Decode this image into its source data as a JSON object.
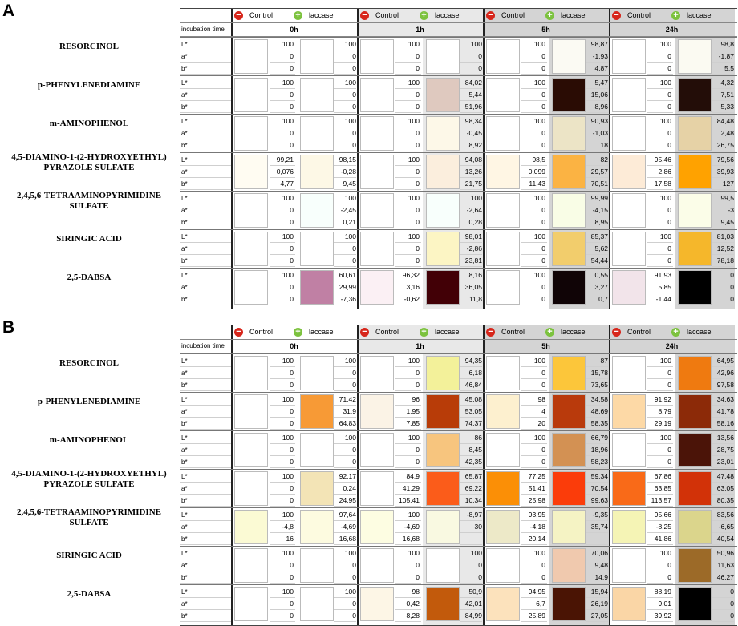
{
  "incubation_label": "incubation time",
  "control_label": "Control",
  "laccase_label": "laccase",
  "timepoints": [
    "0h",
    "1h",
    "5h",
    "24h"
  ],
  "param_labels": [
    "L*",
    "a*",
    "b*"
  ],
  "compounds": [
    "RESORCINOL",
    "p-PHENYLENEDIAMINE",
    "m-AMINOPHENOL",
    "4,5-DIAMINO-1-(2-HYDROXYETHYL)\nPYRAZOLE  SULFATE",
    "2,4,5,6-TETRAAMINOPYRIMIDINE\nSULFATE",
    "SIRINGIC ACID",
    "2,5-DABSA"
  ],
  "panels": [
    {
      "letter": "A",
      "rows": [
        {
          "control": [
            [
              "100",
              "0",
              "0"
            ],
            [
              "100",
              "0",
              "0"
            ],
            [
              "100",
              "0",
              "0"
            ],
            [
              "100",
              "0",
              "0"
            ]
          ],
          "laccase": [
            [
              "100",
              "0",
              "0"
            ],
            [
              "100",
              "0",
              "0"
            ],
            [
              "98,87",
              "-1,93",
              "4,87"
            ],
            [
              "98,8",
              "-1,87",
              "5,5"
            ]
          ],
          "ctrl_colors": [
            "#ffffff",
            "#ffffff",
            "#ffffff",
            "#ffffff"
          ],
          "lac_colors": [
            "#ffffff",
            "#ffffff",
            "#fbfaf3",
            "#fbfaf2"
          ]
        },
        {
          "control": [
            [
              "100",
              "0",
              "0"
            ],
            [
              "100",
              "0",
              "0"
            ],
            [
              "100",
              "0",
              "0"
            ],
            [
              "100",
              "0",
              "0"
            ]
          ],
          "laccase": [
            [
              "100",
              "0",
              "0"
            ],
            [
              "84,02",
              "5,44",
              "51,96"
            ],
            [
              "5,47",
              "15,06",
              "8,96"
            ],
            [
              "4,32",
              "7,51",
              "5,33"
            ]
          ],
          "ctrl_colors": [
            "#ffffff",
            "#ffffff",
            "#ffffff",
            "#ffffff"
          ],
          "lac_colors": [
            "#ffffff",
            "#dfc9bf",
            "#2a0c04",
            "#230d08"
          ]
        },
        {
          "control": [
            [
              "100",
              "0",
              "0"
            ],
            [
              "100",
              "0",
              "0"
            ],
            [
              "100",
              "0",
              "0"
            ],
            [
              "100",
              "0",
              "0"
            ]
          ],
          "laccase": [
            [
              "100",
              "0",
              "0"
            ],
            [
              "98,34",
              "-0,45",
              "8,92"
            ],
            [
              "90,93",
              "-1,03",
              "18"
            ],
            [
              "84,48",
              "2,48",
              "26,75"
            ]
          ],
          "ctrl_colors": [
            "#ffffff",
            "#ffffff",
            "#ffffff",
            "#ffffff"
          ],
          "lac_colors": [
            "#ffffff",
            "#fdf8e8",
            "#ece4c6",
            "#e6d2a6"
          ]
        },
        {
          "control": [
            [
              "99,21",
              "0,076",
              "4,77"
            ],
            [
              "100",
              "0",
              "0"
            ],
            [
              "98,5",
              "0,099",
              "11,43"
            ],
            [
              "95,46",
              "2,86",
              "17,58"
            ]
          ],
          "laccase": [
            [
              "98,15",
              "-0,28",
              "9,45"
            ],
            [
              "94,08",
              "13,26",
              "21,75"
            ],
            [
              "82",
              "29,57",
              "70,51"
            ],
            [
              "79,56",
              "39,93",
              "127"
            ]
          ],
          "ctrl_colors": [
            "#fffcf2",
            "#ffffff",
            "#fff6e4",
            "#fdebd7"
          ],
          "lac_colors": [
            "#fdf8e6",
            "#fbeedd",
            "#fbb343",
            "#ffa200"
          ]
        },
        {
          "control": [
            [
              "100",
              "0",
              "0"
            ],
            [
              "100",
              "0",
              "0"
            ],
            [
              "100",
              "0",
              "0"
            ],
            [
              "100",
              "0",
              "0"
            ]
          ],
          "laccase": [
            [
              "100",
              "-2,45",
              "0,21"
            ],
            [
              "100",
              "-2,64",
              "0,28"
            ],
            [
              "99,99",
              "-4,15",
              "8,95"
            ],
            [
              "99,5",
              "-3",
              "9,45"
            ]
          ],
          "ctrl_colors": [
            "#ffffff",
            "#ffffff",
            "#ffffff",
            "#ffffff"
          ],
          "lac_colors": [
            "#f8fffc",
            "#f8fffc",
            "#f9fde6",
            "#fbfde8"
          ]
        },
        {
          "control": [
            [
              "100",
              "0",
              "0"
            ],
            [
              "100",
              "0",
              "0"
            ],
            [
              "100",
              "0",
              "0"
            ],
            [
              "100",
              "0",
              "0"
            ]
          ],
          "laccase": [
            [
              "100",
              "0",
              "0"
            ],
            [
              "98,01",
              "-2,86",
              "23,81"
            ],
            [
              "85,37",
              "5,62",
              "54,44"
            ],
            [
              "81,03",
              "12,52",
              "78,18"
            ]
          ],
          "ctrl_colors": [
            "#ffffff",
            "#ffffff",
            "#ffffff",
            "#ffffff"
          ],
          "lac_colors": [
            "#ffffff",
            "#fcf5c4",
            "#f2cd6c",
            "#f5b72b"
          ]
        },
        {
          "control": [
            [
              "100",
              "0",
              "0"
            ],
            [
              "96,32",
              "3,16",
              "-0,62"
            ],
            [
              "100",
              "0",
              "0"
            ],
            [
              "91,93",
              "5,85",
              "-1,44"
            ]
          ],
          "laccase": [
            [
              "60,61",
              "29,99",
              "-7,36"
            ],
            [
              "8,16",
              "36,05",
              "11,8"
            ],
            [
              "0,55",
              "3,27",
              "0,7"
            ],
            [
              "0",
              "0",
              "0"
            ]
          ],
          "ctrl_colors": [
            "#ffffff",
            "#fbf0f4",
            "#ffffff",
            "#f2e4ea"
          ],
          "lac_colors": [
            "#c080a4",
            "#420006",
            "#100406",
            "#000000"
          ]
        }
      ]
    },
    {
      "letter": "B",
      "rows": [
        {
          "control": [
            [
              "100",
              "0",
              "0"
            ],
            [
              "100",
              "0",
              "0"
            ],
            [
              "100",
              "0",
              "0"
            ],
            [
              "100",
              "0",
              "0"
            ]
          ],
          "laccase": [
            [
              "100",
              "0",
              "0"
            ],
            [
              "94,35",
              "6,18",
              "46,84"
            ],
            [
              "87",
              "15,78",
              "73,65"
            ],
            [
              "64,95",
              "42,96",
              "97,58"
            ]
          ],
          "ctrl_colors": [
            "#ffffff",
            "#ffffff",
            "#ffffff",
            "#ffffff"
          ],
          "lac_colors": [
            "#ffffff",
            "#f3f19a",
            "#fcc63a",
            "#ef7a10"
          ]
        },
        {
          "control": [
            [
              "100",
              "0",
              "0"
            ],
            [
              "96",
              "1,95",
              "7,85"
            ],
            [
              "98",
              "4",
              "20"
            ],
            [
              "91,92",
              "8,79",
              "29,19"
            ]
          ],
          "laccase": [
            [
              "71,42",
              "31,9",
              "64,83"
            ],
            [
              "45,08",
              "53,05",
              "74,37"
            ],
            [
              "34,58",
              "48,69",
              "58,35"
            ],
            [
              "34,63",
              "41,78",
              "58,16"
            ]
          ],
          "ctrl_colors": [
            "#ffffff",
            "#fbf3e6",
            "#fdf0cf",
            "#fdd9a6"
          ],
          "lac_colors": [
            "#f79a36",
            "#b83c08",
            "#b93a0c",
            "#8c2a08"
          ]
        },
        {
          "control": [
            [
              "100",
              "0",
              "0"
            ],
            [
              "100",
              "0",
              "0"
            ],
            [
              "100",
              "0",
              "0"
            ],
            [
              "100",
              "0",
              "0"
            ]
          ],
          "laccase": [
            [
              "100",
              "0",
              "0"
            ],
            [
              "86",
              "8,45",
              "42,35"
            ],
            [
              "66,79",
              "18,96",
              "58,23"
            ],
            [
              "13,56",
              "28,75",
              "23,01"
            ]
          ],
          "ctrl_colors": [
            "#ffffff",
            "#ffffff",
            "#ffffff",
            "#ffffff"
          ],
          "lac_colors": [
            "#ffffff",
            "#f7c57e",
            "#d39153",
            "#4b1408"
          ]
        },
        {
          "control": [
            [
              "100",
              "0",
              "0"
            ],
            [
              "84,9",
              "41,29",
              "105,41"
            ],
            [
              "77,25",
              "51,41",
              "25,98"
            ],
            [
              "67,86",
              "63,85",
              "113,57"
            ]
          ],
          "laccase": [
            [
              "92,17",
              "0,24",
              "24,95"
            ],
            [
              "65,87",
              "69,22",
              "10,34"
            ],
            [
              "59,34",
              "70,54",
              "99,63"
            ],
            [
              "47,48",
              "63,05",
              "80,35"
            ]
          ],
          "ctrl_colors": [
            "#ffffff",
            "#ffffff",
            "#fb8f06",
            "#f96a18"
          ],
          "lac_colors": [
            "#f3e4b6",
            "#fb5c1a",
            "#fb3c0a",
            "#d23208"
          ]
        },
        {
          "control": [
            [
              "100",
              "-4,8",
              "16"
            ],
            [
              "100",
              "-4,69",
              "16,68"
            ],
            [
              "93,95",
              "-4,18",
              "20,14"
            ],
            [
              "95,66",
              "-8,25",
              "41,86"
            ]
          ],
          "laccase": [
            [
              "97,64",
              "-4,69",
              "16,68"
            ],
            [
              "-8,97",
              "30",
              ""
            ],
            [
              "-9,35",
              "35,74",
              ""
            ],
            [
              "83,56",
              "-6,65",
              "40,54"
            ]
          ],
          "ctrl_colors": [
            "#fbfad4",
            "#fdfde2",
            "#ede9c8",
            "#f5f4b5"
          ],
          "lac_colors": [
            "#fdfbe0",
            "#f9f9e1",
            "#f5f3c4",
            "#dbd58c"
          ]
        },
        {
          "control": [
            [
              "100",
              "0",
              "0"
            ],
            [
              "100",
              "0",
              "0"
            ],
            [
              "100",
              "0",
              "0"
            ],
            [
              "100",
              "0",
              "0"
            ]
          ],
          "laccase": [
            [
              "100",
              "0",
              "0"
            ],
            [
              "100",
              "0",
              "0"
            ],
            [
              "70,06",
              "9,48",
              "14,9"
            ],
            [
              "50,96",
              "11,63",
              "46,27"
            ]
          ],
          "ctrl_colors": [
            "#ffffff",
            "#ffffff",
            "#ffffff",
            "#ffffff"
          ],
          "lac_colors": [
            "#ffffff",
            "#ffffff",
            "#f0c9ae",
            "#9c6a28"
          ]
        },
        {
          "control": [
            [
              "100",
              "0",
              "0"
            ],
            [
              "98",
              "0,42",
              "8,28"
            ],
            [
              "94,95",
              "6,7",
              "25,89"
            ],
            [
              "88,19",
              "9,01",
              "39,92"
            ]
          ],
          "laccase": [
            [
              "100",
              "0",
              "0"
            ],
            [
              "50,9",
              "42,01",
              "84,99"
            ],
            [
              "15,94",
              "26,19",
              "27,05"
            ],
            [
              "0",
              "0",
              "0"
            ]
          ],
          "ctrl_colors": [
            "#ffffff",
            "#fdf6e6",
            "#fce2bc",
            "#fad6a6"
          ],
          "lac_colors": [
            "#ffffff",
            "#c25a0c",
            "#4a1404",
            "#000000"
          ]
        }
      ]
    }
  ]
}
